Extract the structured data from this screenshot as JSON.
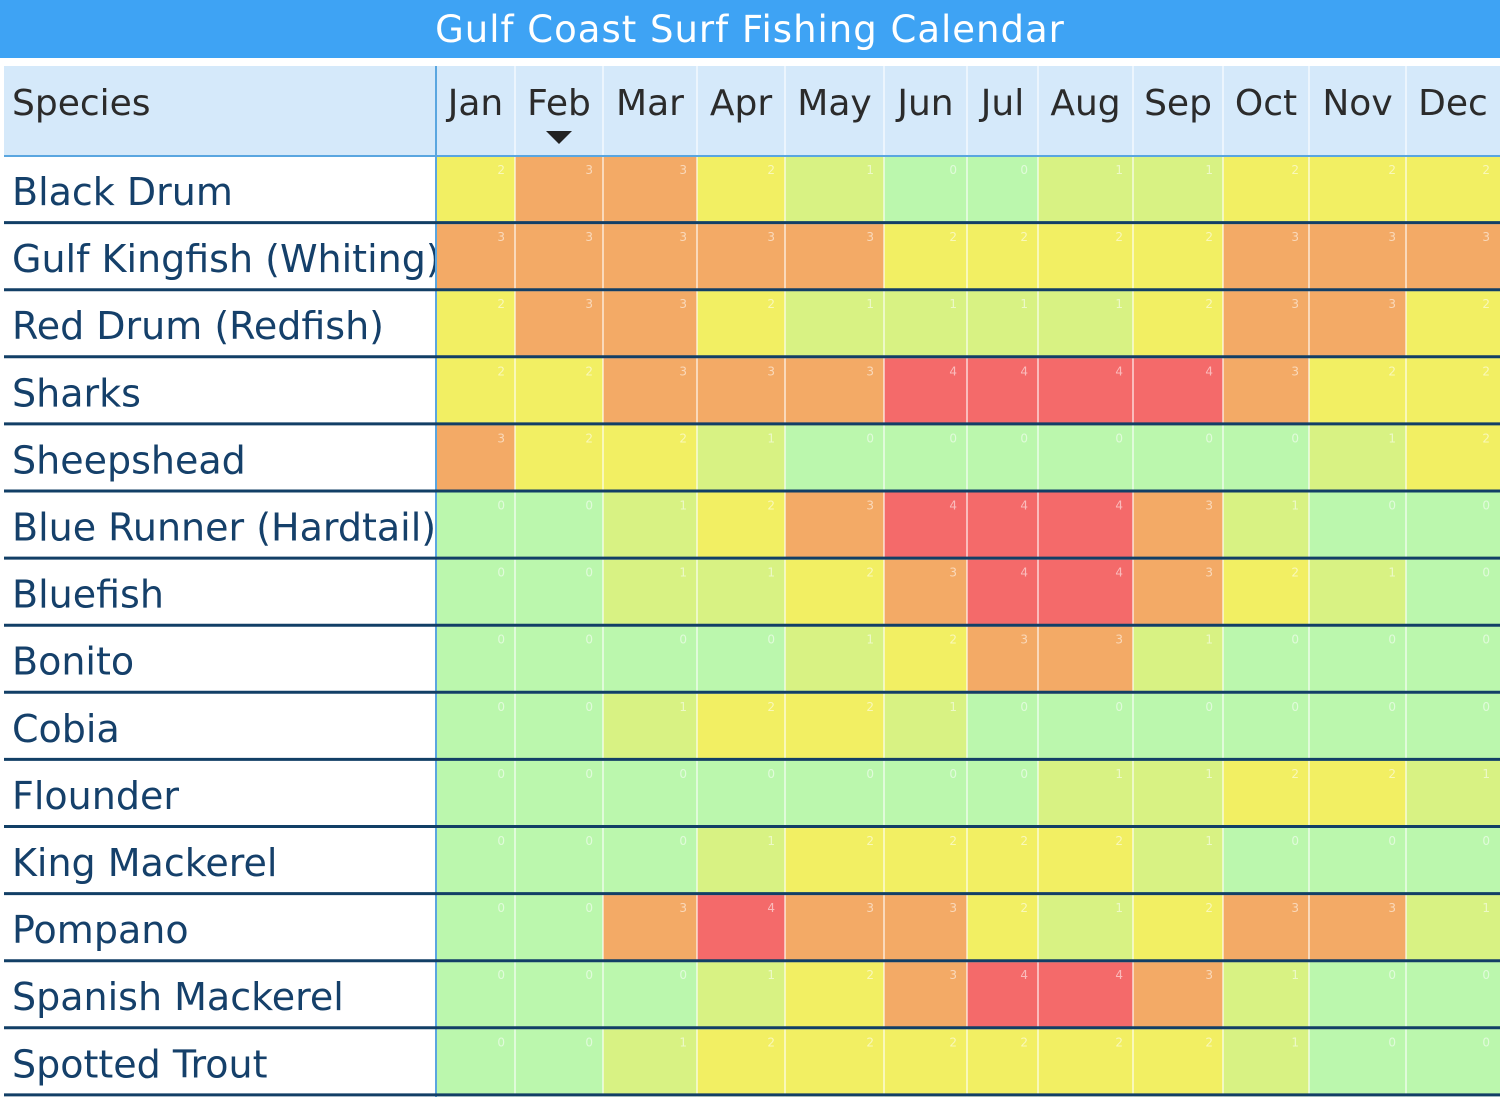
{
  "title": "Gulf Coast Surf Fishing Calendar",
  "chart_data": {
    "type": "heatmap",
    "title": "Gulf Coast Surf Fishing Calendar",
    "row_header": "Species",
    "sort_indicator_column": "Feb",
    "columns": [
      "Jan",
      "Feb",
      "Mar",
      "Apr",
      "May",
      "Jun",
      "Jul",
      "Aug",
      "Sep",
      "Oct",
      "Nov",
      "Dec"
    ],
    "rows": [
      "Black Drum",
      "Gulf Kingfish (Whiting)",
      "Red Drum (Redfish)",
      "Sharks",
      "Sheepshead",
      "Blue Runner (Hardtail)",
      "Bluefish",
      "Bonito",
      "Cobia",
      "Flounder",
      "King Mackerel",
      "Pompano",
      "Spanish Mackerel",
      "Spotted Trout"
    ],
    "values": [
      [
        2,
        3,
        3,
        2,
        1,
        0,
        0,
        1,
        1,
        2,
        2,
        2
      ],
      [
        3,
        3,
        3,
        3,
        3,
        2,
        2,
        2,
        2,
        3,
        3,
        3
      ],
      [
        2,
        3,
        3,
        2,
        1,
        1,
        1,
        1,
        2,
        3,
        3,
        2
      ],
      [
        2,
        2,
        3,
        3,
        3,
        4,
        4,
        4,
        4,
        3,
        2,
        2
      ],
      [
        3,
        2,
        2,
        1,
        0,
        0,
        0,
        0,
        0,
        0,
        1,
        2
      ],
      [
        0,
        0,
        1,
        2,
        3,
        4,
        4,
        4,
        3,
        1,
        0,
        0
      ],
      [
        0,
        0,
        1,
        1,
        2,
        3,
        4,
        4,
        3,
        2,
        1,
        0
      ],
      [
        0,
        0,
        0,
        0,
        1,
        2,
        3,
        3,
        1,
        0,
        0,
        0
      ],
      [
        0,
        0,
        1,
        2,
        2,
        1,
        0,
        0,
        0,
        0,
        0,
        0
      ],
      [
        0,
        0,
        0,
        0,
        0,
        0,
        0,
        1,
        1,
        2,
        2,
        1
      ],
      [
        0,
        0,
        0,
        1,
        2,
        2,
        2,
        2,
        1,
        0,
        0,
        0
      ],
      [
        0,
        0,
        3,
        4,
        3,
        3,
        2,
        1,
        2,
        3,
        3,
        1
      ],
      [
        0,
        0,
        0,
        1,
        2,
        3,
        4,
        4,
        3,
        1,
        0,
        0
      ],
      [
        0,
        0,
        1,
        2,
        2,
        2,
        2,
        2,
        2,
        1,
        0,
        0
      ]
    ],
    "color_scale": {
      "0": "#bbf7ad",
      "1": "#d8f283",
      "2": "#f2ef63",
      "3": "#f3aa66",
      "4": "#f46a6a"
    },
    "colors": {
      "title_bar": "#3ea3f4",
      "header_bg": "#d5e9fa",
      "species_text": "#15406a",
      "row_separator": "#123f66"
    }
  }
}
